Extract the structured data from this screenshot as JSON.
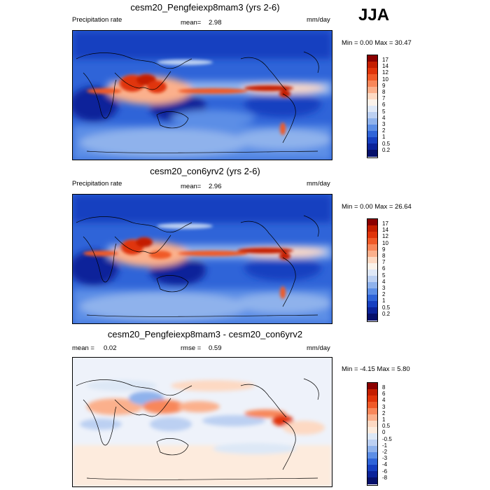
{
  "season": "JJA",
  "panels": [
    {
      "title": "cesm20_Pengfeiexp8mam3 (yrs 2-6)",
      "left_label": "Precipitation rate",
      "mid_label": "mean=",
      "mid_value": "2.98",
      "units": "mm/day",
      "minmax": "Min =   0.00 Max =  30.47",
      "levels": [
        "17",
        "14",
        "12",
        "10",
        "9",
        "8",
        "7",
        "6",
        "5",
        "4",
        "3",
        "2",
        "1",
        "0.5",
        "0.2"
      ]
    },
    {
      "title": "cesm20_con6yrv2 (yrs 2-6)",
      "left_label": "Precipitation rate",
      "mid_label": "mean=",
      "mid_value": "2.96",
      "units": "mm/day",
      "minmax": "Min =   0.00 Max =  26.64",
      "levels": [
        "17",
        "14",
        "12",
        "10",
        "9",
        "8",
        "7",
        "6",
        "5",
        "4",
        "3",
        "2",
        "1",
        "0.5",
        "0.2"
      ]
    },
    {
      "title": "cesm20_Pengfeiexp8mam3 - cesm20_con6yrv2",
      "left_label": "mean =",
      "left_value": "0.02",
      "mid_label": "rmse =",
      "mid_value": "0.59",
      "units": "mm/day",
      "minmax": "Min =  -4.15 Max =   5.80",
      "levels": [
        "8",
        "6",
        "4",
        "3",
        "2",
        "1",
        "0.5",
        "0",
        "-0.5",
        "-1",
        "-2",
        "-3",
        "-4",
        "-6",
        "-8"
      ]
    }
  ],
  "colors": {
    "precip": [
      "#8b0000",
      "#c41e00",
      "#e0340a",
      "#f05a28",
      "#f8875a",
      "#fbb08c",
      "#fdd9c3",
      "#fbf2ea",
      "#dfe8f7",
      "#bcd0f2",
      "#8fb2ec",
      "#5c8ee6",
      "#2f64d8",
      "#163fc0",
      "#0b239a",
      "#06106b"
    ],
    "diff": [
      "#8b0000",
      "#c41e00",
      "#e0340a",
      "#f05a28",
      "#f8875a",
      "#fbb08c",
      "#fdd9c3",
      "#fdebdd",
      "#dde8f6",
      "#bcd0f2",
      "#8fb2ec",
      "#5c8ee6",
      "#2f64d8",
      "#163fc0",
      "#0b239a",
      "#06106b"
    ]
  }
}
